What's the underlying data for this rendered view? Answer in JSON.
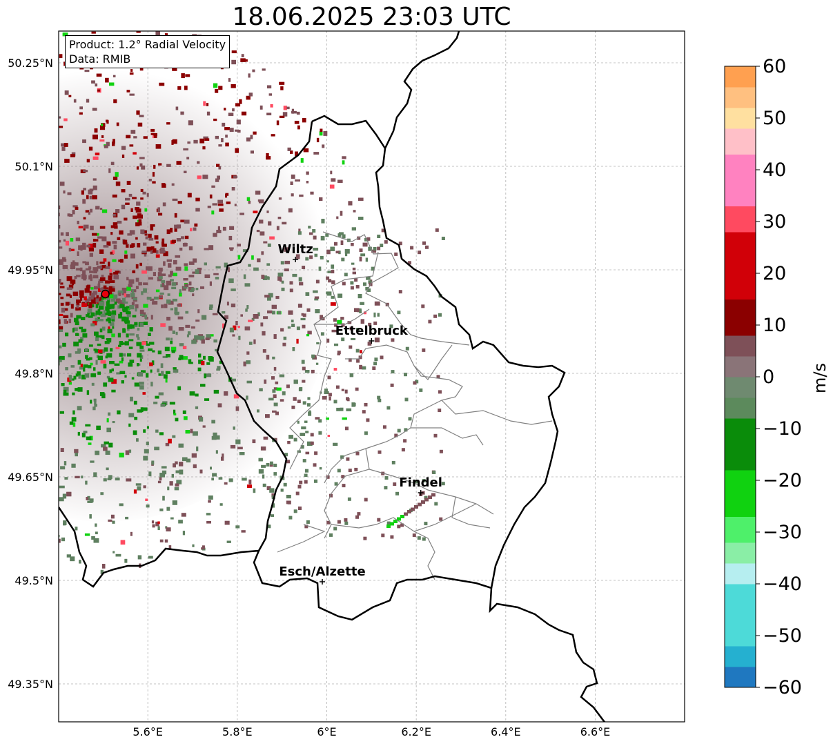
{
  "title": "18.06.2025 23:03 UTC",
  "info": {
    "product": "Product: 1.2° Radial Velocity",
    "data": "Data: RMIB"
  },
  "axes": {
    "lon_ticks": [
      {
        "value": 5.6,
        "label": "5.6°E"
      },
      {
        "value": 5.8,
        "label": "5.8°E"
      },
      {
        "value": 6.0,
        "label": "6°E"
      },
      {
        "value": 6.2,
        "label": "6.2°E"
      },
      {
        "value": 6.4,
        "label": "6.4°E"
      },
      {
        "value": 6.6,
        "label": "6.6°E"
      }
    ],
    "lat_ticks": [
      {
        "value": 50.25,
        "label": "50.25°N"
      },
      {
        "value": 50.1,
        "label": "50.1°N"
      },
      {
        "value": 49.95,
        "label": "49.95°N"
      },
      {
        "value": 49.8,
        "label": "49.8°N"
      },
      {
        "value": 49.65,
        "label": "49.65°N"
      },
      {
        "value": 49.5,
        "label": "49.5°N"
      },
      {
        "value": 49.35,
        "label": "49.35°N"
      }
    ],
    "lon_range": [
      5.4,
      6.8
    ],
    "lat_range": [
      49.3,
      50.3
    ],
    "grid": true
  },
  "radar_site": {
    "lon": 5.505,
    "lat": 49.915,
    "color": "#e8000b"
  },
  "cities": [
    {
      "name": "Wiltz",
      "lon": 5.93,
      "lat": 49.965
    },
    {
      "name": "Ettelbruck",
      "lon": 6.1,
      "lat": 49.847
    },
    {
      "name": "Findel",
      "lon": 6.21,
      "lat": 49.627
    },
    {
      "name": "Esch/Alzette",
      "lon": 5.99,
      "lat": 49.498
    }
  ],
  "colorbar": {
    "unit": "m/s",
    "min": -60,
    "max": 60,
    "ticks": [
      {
        "value": 60,
        "label": "60"
      },
      {
        "value": 50,
        "label": "50"
      },
      {
        "value": 40,
        "label": "40"
      },
      {
        "value": 30,
        "label": "30"
      },
      {
        "value": 20,
        "label": "20"
      },
      {
        "value": 10,
        "label": "10"
      },
      {
        "value": 0,
        "label": "0"
      },
      {
        "value": -10,
        "label": "−10"
      },
      {
        "value": -20,
        "label": "−20"
      },
      {
        "value": -30,
        "label": "−30"
      },
      {
        "value": -40,
        "label": "−40"
      },
      {
        "value": -50,
        "label": "−50"
      },
      {
        "value": -60,
        "label": "−60"
      }
    ],
    "stops": [
      {
        "from": -60,
        "to": -56,
        "color": "#1f78c0"
      },
      {
        "from": -56,
        "to": -52,
        "color": "#25b0d0"
      },
      {
        "from": -52,
        "to": -40,
        "color": "#4ddad8"
      },
      {
        "from": -40,
        "to": -36,
        "color": "#b6eef0"
      },
      {
        "from": -36,
        "to": -32,
        "color": "#8aeea6"
      },
      {
        "from": -32,
        "to": -27,
        "color": "#4ef06a"
      },
      {
        "from": -27,
        "to": -18,
        "color": "#10d210"
      },
      {
        "from": -18,
        "to": -8,
        "color": "#0a8c0a"
      },
      {
        "from": -8,
        "to": -4,
        "color": "#5c8a5c"
      },
      {
        "from": -4,
        "to": 0,
        "color": "#6f8a70"
      },
      {
        "from": 0,
        "to": 4,
        "color": "#8a7478"
      },
      {
        "from": 4,
        "to": 8,
        "color": "#7e5058"
      },
      {
        "from": 8,
        "to": 15,
        "color": "#8b0000"
      },
      {
        "from": 15,
        "to": 28,
        "color": "#d10008"
      },
      {
        "from": 28,
        "to": 33,
        "color": "#ff4a60"
      },
      {
        "from": 33,
        "to": 43,
        "color": "#ff82c0"
      },
      {
        "from": 43,
        "to": 48,
        "color": "#ffc0c8"
      },
      {
        "from": 48,
        "to": 52,
        "color": "#ffe0a0"
      },
      {
        "from": 52,
        "to": 56,
        "color": "#ffc080"
      },
      {
        "from": 56,
        "to": 60,
        "color": "#ffa050"
      }
    ]
  },
  "colors": {
    "border": "#000000",
    "canton": "#808080",
    "grid": "#b0b0b0",
    "inbound_green": "#0a8c0a",
    "inbound_gray": "#5f8060",
    "outbound_brown": "#7e5058",
    "outbound_red": "#8b0000"
  }
}
